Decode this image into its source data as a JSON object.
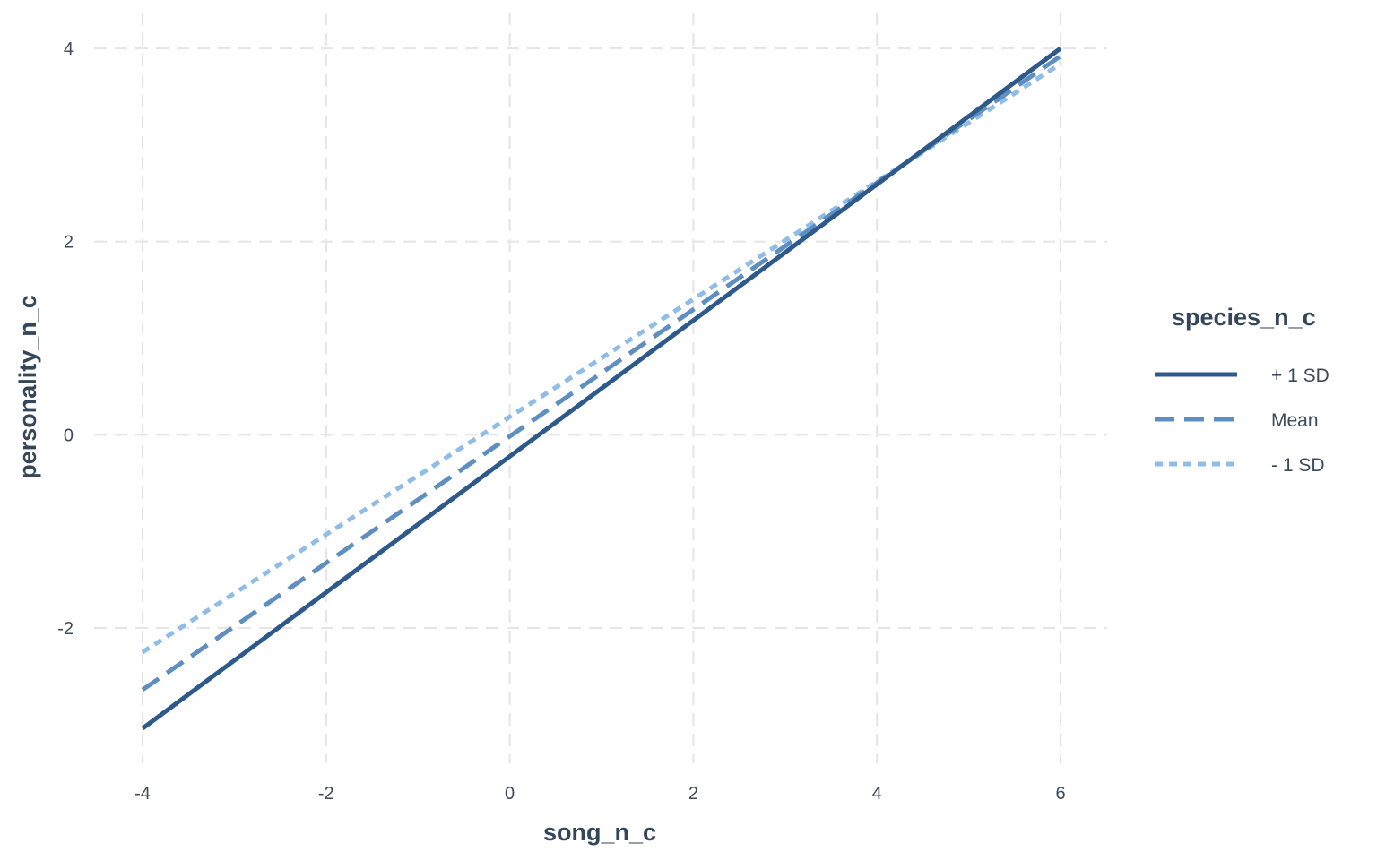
{
  "chart_data": {
    "type": "line",
    "xlabel": "song_n_c",
    "ylabel": "personality_n_c",
    "xlim": [
      -4,
      6
    ],
    "ylim": [
      -3,
      4
    ],
    "x_ticks": [
      -4,
      -2,
      0,
      2,
      4,
      6
    ],
    "y_ticks": [
      -2,
      0,
      2,
      4
    ],
    "x_tick_labels": [
      "-4",
      "-2",
      "0",
      "2",
      "4",
      "6"
    ],
    "y_tick_labels": [
      "-2",
      "0",
      "2",
      "4"
    ],
    "grid": true,
    "legend": {
      "title": "species_n_c",
      "placement": "right"
    },
    "series": [
      {
        "name": "+ 1 SD",
        "linetype": "solid",
        "color": "#2d5a8a",
        "x": [
          -4,
          6
        ],
        "y": [
          -3.04,
          4.0
        ]
      },
      {
        "name": "Mean",
        "linetype": "dashed",
        "color": "#5e8fc0",
        "x": [
          -4,
          6
        ],
        "y": [
          -2.64,
          3.92
        ]
      },
      {
        "name": "- 1 SD",
        "linetype": "dotted",
        "color": "#8fbde8",
        "x": [
          -4,
          6
        ],
        "y": [
          -2.25,
          3.84
        ]
      }
    ]
  }
}
